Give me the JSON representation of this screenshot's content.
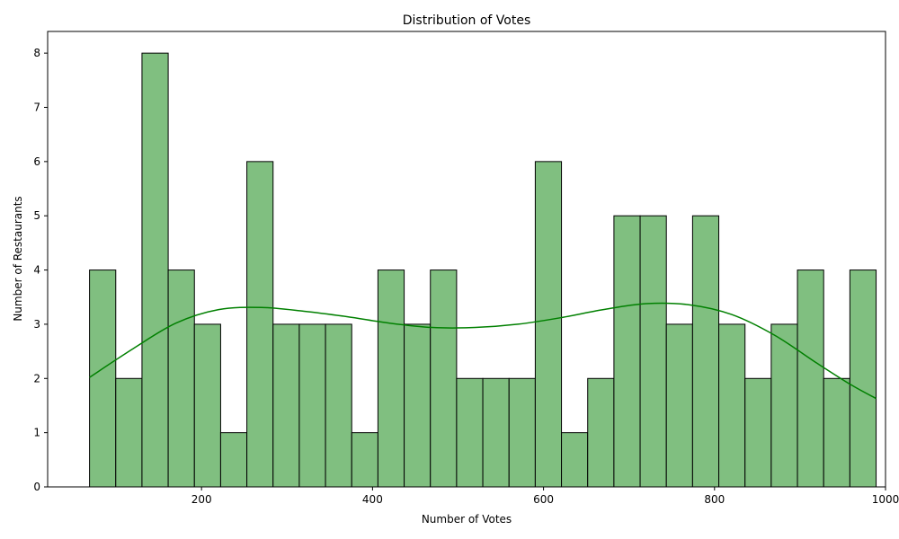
{
  "chart_data": {
    "type": "bar",
    "title": "Distribution of Votes",
    "xlabel": "Number of Votes",
    "ylabel": "Number of Restaurants",
    "xlim": [
      20,
      1000
    ],
    "ylim": [
      0,
      8.4
    ],
    "xticks": [
      200,
      400,
      600,
      800,
      1000
    ],
    "yticks": [
      0,
      1,
      2,
      3,
      4,
      5,
      6,
      7,
      8
    ],
    "bins": {
      "start": 69,
      "end": 989,
      "count": 30,
      "counts": [
        4,
        2,
        8,
        4,
        3,
        1,
        6,
        3,
        3,
        3,
        1,
        4,
        3,
        4,
        2,
        2,
        2,
        6,
        1,
        2,
        5,
        5,
        3,
        5,
        3,
        2,
        3,
        4,
        2,
        4
      ]
    },
    "kde_curve": {
      "x": [
        69,
        120,
        170,
        220,
        270,
        320,
        370,
        420,
        470,
        520,
        570,
        620,
        670,
        720,
        770,
        820,
        870,
        920,
        960,
        989
      ],
      "y": [
        2.02,
        2.55,
        3.02,
        3.27,
        3.31,
        3.24,
        3.14,
        3.02,
        2.94,
        2.94,
        3.0,
        3.12,
        3.27,
        3.38,
        3.36,
        3.18,
        2.8,
        2.28,
        1.88,
        1.63
      ]
    },
    "colors": {
      "bar_fill": "#80bf80",
      "bar_edge": "#000000",
      "kde_line": "#008000",
      "axes": "#000000"
    },
    "grid": false,
    "legend": "none"
  }
}
